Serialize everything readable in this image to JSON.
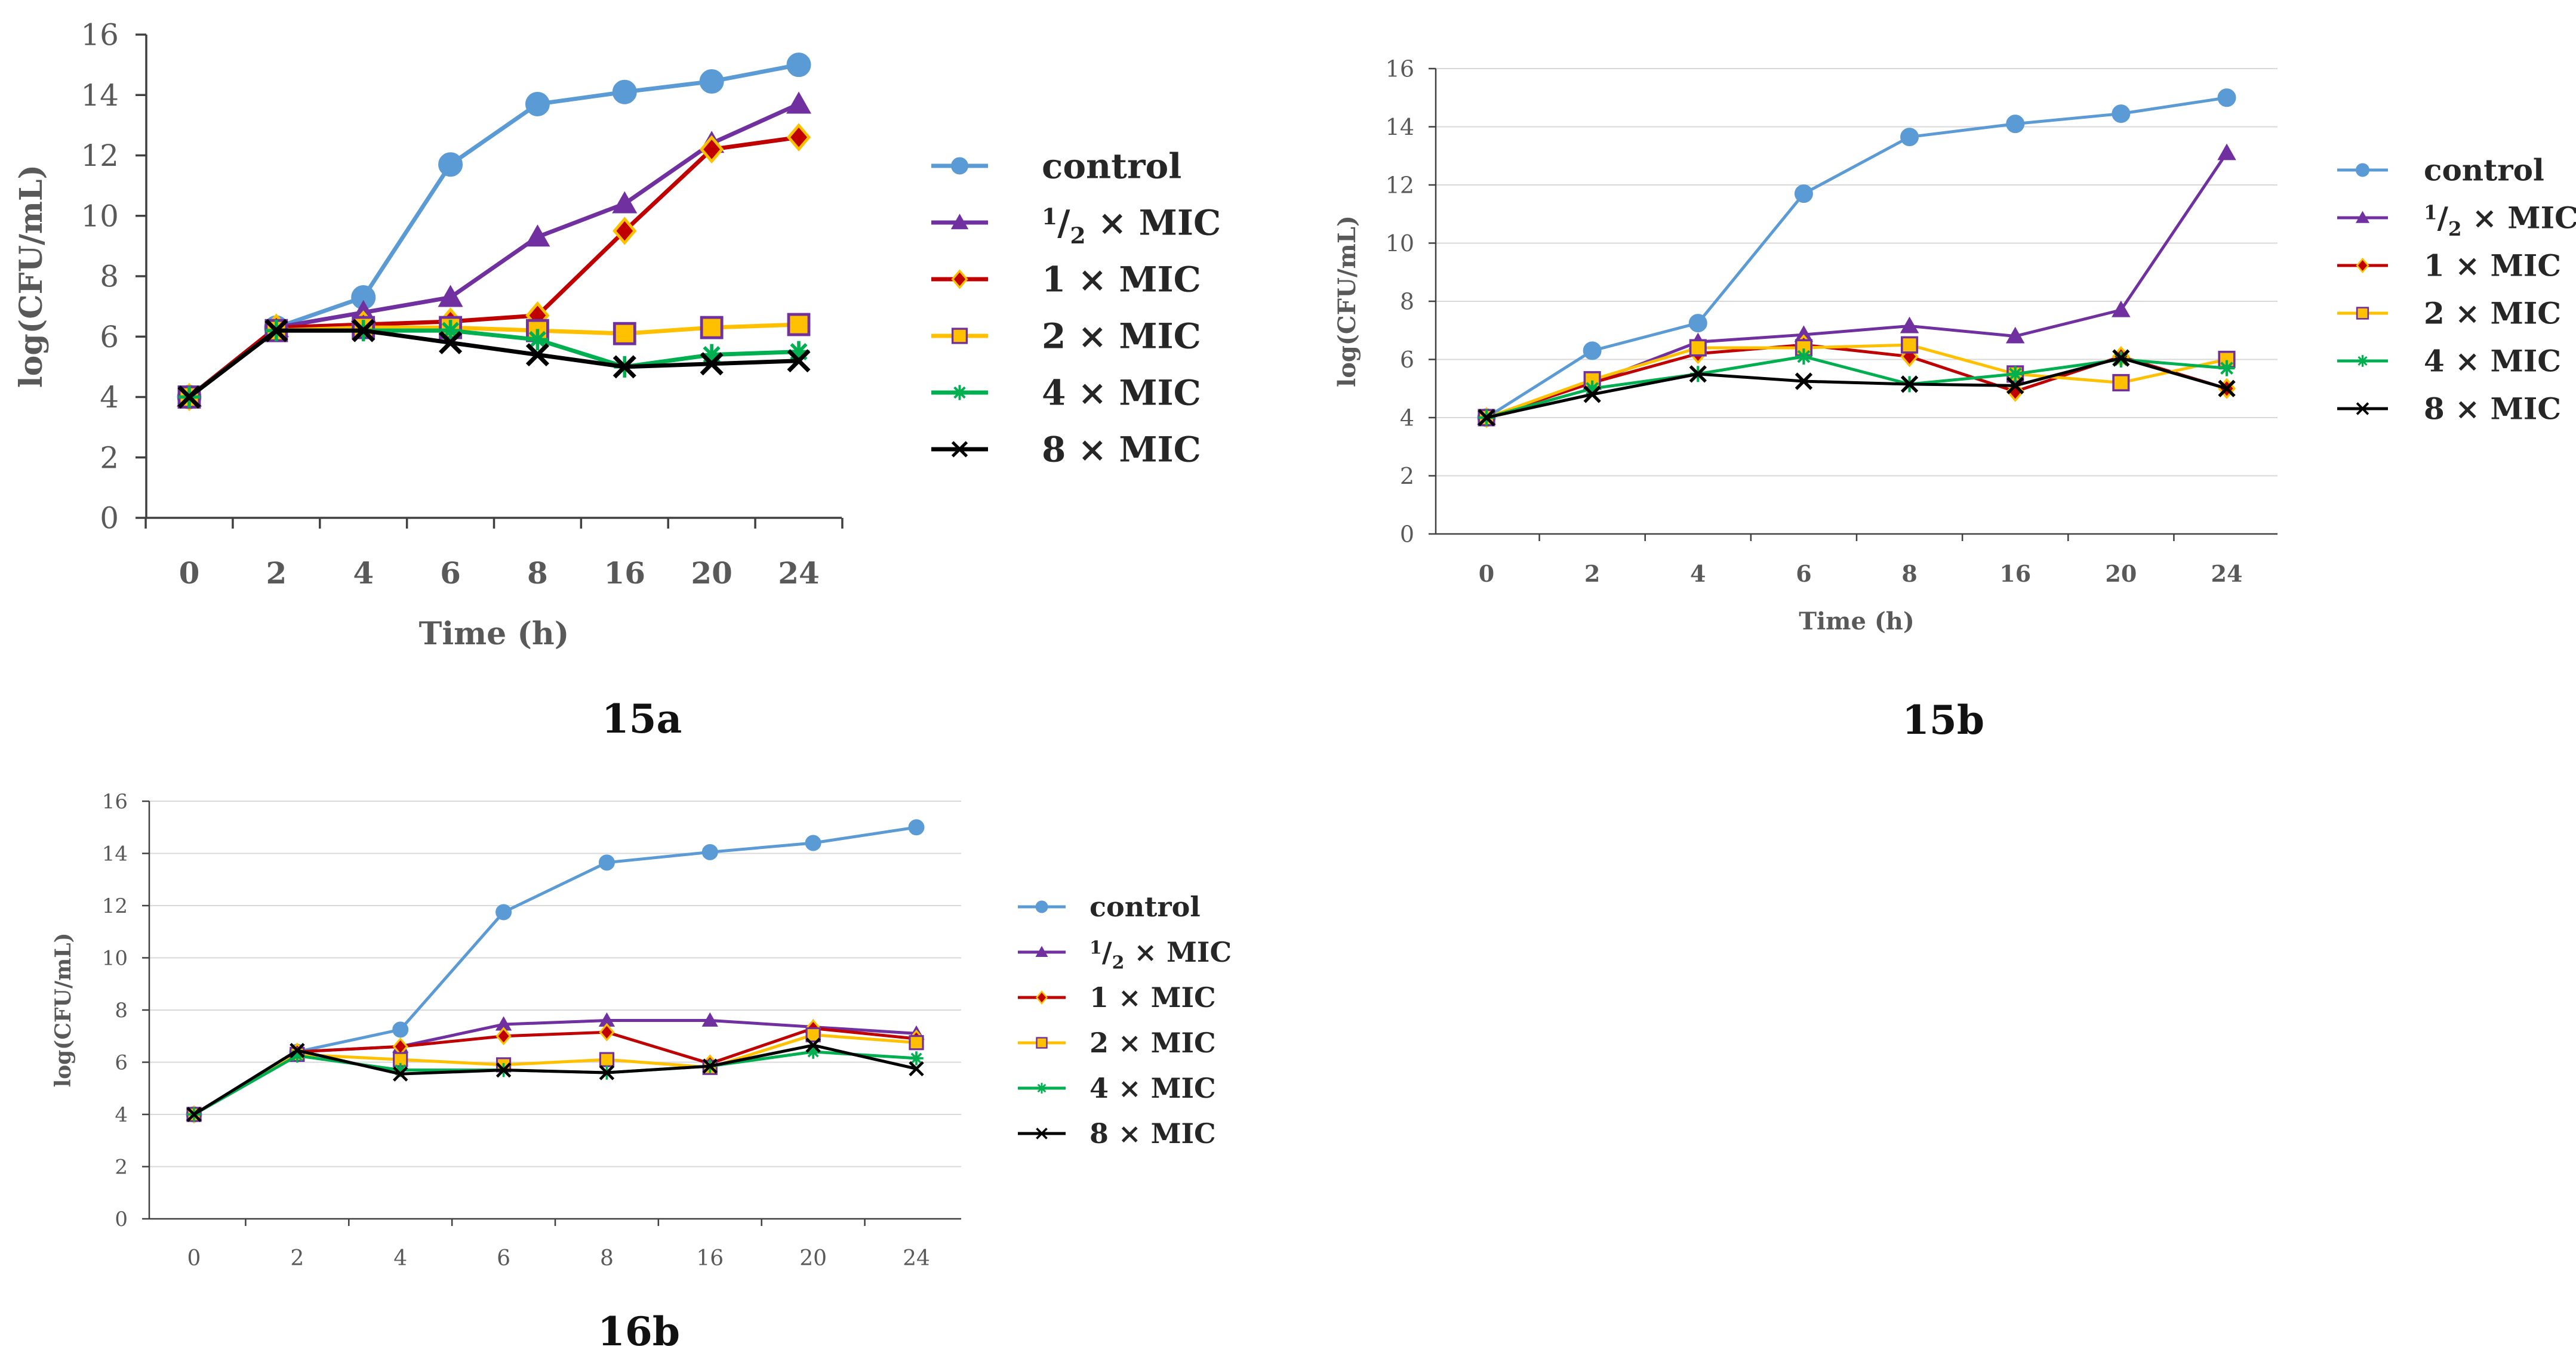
{
  "chart_data": [
    {
      "type": "line",
      "panel": "15a",
      "caption": "15a",
      "title": "",
      "xlabel": "Time (h)",
      "ylabel": "log(CFU/mL)",
      "categories": [
        "0",
        "2",
        "4",
        "6",
        "8",
        "16",
        "20",
        "24"
      ],
      "ylim": [
        0,
        16
      ],
      "yticks": [
        "0",
        "2",
        "4",
        "6",
        "8",
        "10",
        "12",
        "14",
        "16"
      ],
      "grid": false,
      "legend_position": "right",
      "series": [
        {
          "name": "control",
          "color": "#5b9bd5",
          "marker": "circle",
          "values": [
            4.0,
            6.3,
            7.3,
            11.7,
            13.7,
            14.1,
            14.45,
            15.0
          ]
        },
        {
          "name": "½ × MIC",
          "color": "#7030a0",
          "marker": "triangle",
          "values": [
            4.0,
            6.3,
            6.8,
            7.3,
            9.3,
            10.4,
            12.4,
            13.7
          ]
        },
        {
          "name": "1 × MIC",
          "color": "#c00000",
          "marker": "diamond",
          "values": [
            4.0,
            6.3,
            6.4,
            6.5,
            6.7,
            9.5,
            12.2,
            12.6
          ]
        },
        {
          "name": "2 × MIC",
          "color": "#ffc000",
          "marker": "square",
          "values": [
            4.0,
            6.2,
            6.3,
            6.3,
            6.2,
            6.1,
            6.3,
            6.4
          ]
        },
        {
          "name": "4 × MIC",
          "color": "#00b050",
          "marker": "star",
          "values": [
            4.0,
            6.2,
            6.2,
            6.2,
            5.9,
            5.0,
            5.4,
            5.5
          ]
        },
        {
          "name": "8 × MIC",
          "color": "#000000",
          "marker": "x",
          "values": [
            4.0,
            6.2,
            6.2,
            5.8,
            5.4,
            5.0,
            5.1,
            5.2
          ]
        }
      ]
    },
    {
      "type": "line",
      "panel": "15b",
      "caption": "15b",
      "title": "",
      "xlabel": "Time (h)",
      "ylabel": "log(CFU/mL)",
      "categories": [
        "0",
        "2",
        "4",
        "6",
        "8",
        "16",
        "20",
        "24"
      ],
      "ylim": [
        0,
        16
      ],
      "yticks": [
        "0",
        "2",
        "4",
        "6",
        "8",
        "10",
        "12",
        "14",
        "16"
      ],
      "grid": true,
      "legend_position": "right",
      "series": [
        {
          "name": "control",
          "color": "#5b9bd5",
          "marker": "circle",
          "values": [
            4.0,
            6.3,
            7.25,
            11.7,
            13.65,
            14.1,
            14.45,
            15.0
          ]
        },
        {
          "name": "½ × MIC",
          "color": "#7030a0",
          "marker": "triangle",
          "values": [
            4.0,
            5.2,
            6.6,
            6.85,
            7.15,
            6.8,
            7.7,
            13.1
          ]
        },
        {
          "name": "1 × MIC",
          "color": "#c00000",
          "marker": "diamond",
          "values": [
            4.0,
            5.2,
            6.2,
            6.5,
            6.1,
            4.9,
            6.1,
            5.0
          ]
        },
        {
          "name": "2 × MIC",
          "color": "#ffc000",
          "marker": "square",
          "values": [
            4.0,
            5.3,
            6.4,
            6.4,
            6.5,
            5.5,
            5.2,
            6.0
          ]
        },
        {
          "name": "4 × MIC",
          "color": "#00b050",
          "marker": "star",
          "values": [
            4.0,
            5.0,
            5.5,
            6.1,
            5.15,
            5.5,
            6.0,
            5.7
          ]
        },
        {
          "name": "8 × MIC",
          "color": "#000000",
          "marker": "x",
          "values": [
            4.0,
            4.8,
            5.5,
            5.25,
            5.15,
            5.1,
            6.05,
            5.0
          ]
        }
      ]
    },
    {
      "type": "line",
      "panel": "16b",
      "caption": "16b",
      "title": "",
      "xlabel": "",
      "ylabel": "log(CFU/mL)",
      "categories": [
        "0",
        "2",
        "4",
        "6",
        "8",
        "16",
        "20",
        "24"
      ],
      "ylim": [
        0,
        16
      ],
      "yticks": [
        "0",
        "2",
        "4",
        "6",
        "8",
        "10",
        "12",
        "14",
        "16"
      ],
      "grid": true,
      "legend_position": "right",
      "series": [
        {
          "name": "control",
          "color": "#5b9bd5",
          "marker": "circle",
          "values": [
            4.0,
            6.4,
            7.25,
            11.75,
            13.65,
            14.05,
            14.4,
            15.0
          ]
        },
        {
          "name": "½ × MIC",
          "color": "#7030a0",
          "marker": "triangle",
          "values": [
            4.0,
            6.4,
            6.6,
            7.45,
            7.6,
            7.6,
            7.35,
            7.1
          ]
        },
        {
          "name": "1 × MIC",
          "color": "#c00000",
          "marker": "diamond",
          "values": [
            4.0,
            6.4,
            6.6,
            7.0,
            7.15,
            5.95,
            7.3,
            6.9
          ]
        },
        {
          "name": "2 × MIC",
          "color": "#ffc000",
          "marker": "square",
          "values": [
            4.0,
            6.3,
            6.1,
            5.9,
            6.1,
            5.8,
            7.05,
            6.75
          ]
        },
        {
          "name": "4 × MIC",
          "color": "#00b050",
          "marker": "star",
          "values": [
            4.0,
            6.25,
            5.7,
            5.7,
            5.6,
            5.85,
            6.4,
            6.15
          ]
        },
        {
          "name": "8 × MIC",
          "color": "#000000",
          "marker": "x",
          "values": [
            4.0,
            6.45,
            5.55,
            5.7,
            5.6,
            5.85,
            6.65,
            5.75
          ]
        }
      ]
    }
  ]
}
